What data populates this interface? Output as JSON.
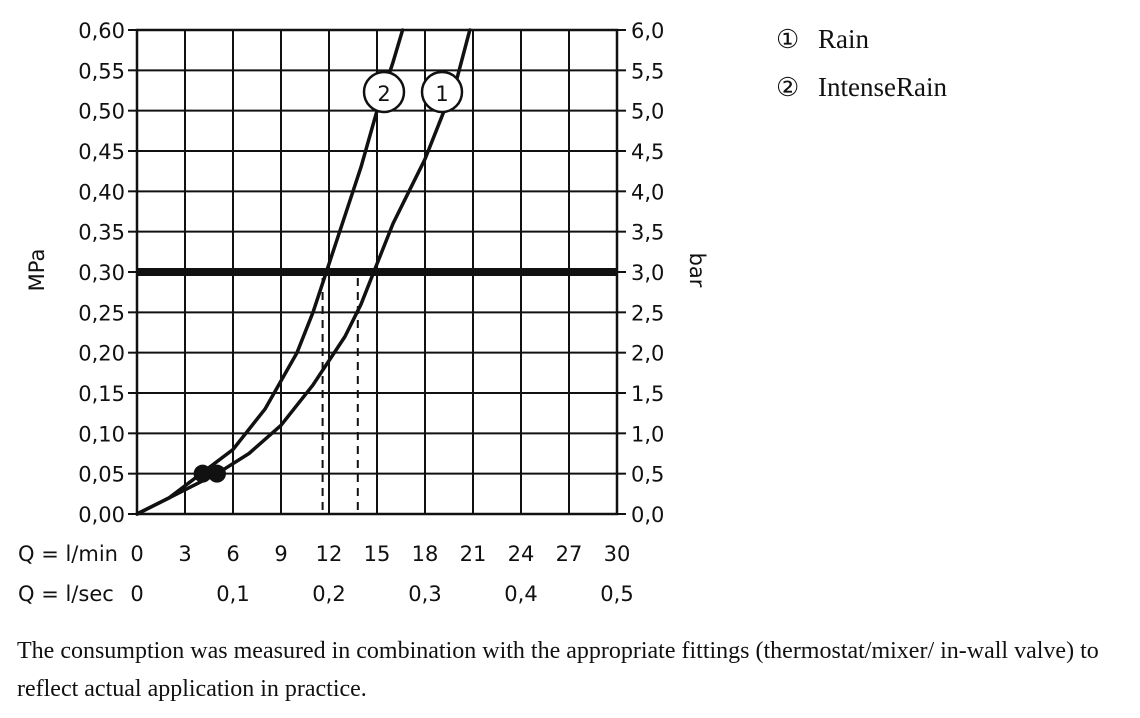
{
  "chart_data": {
    "type": "line",
    "y_left": {
      "label": "MPa",
      "range": [
        0,
        0.6
      ],
      "ticks": [
        "0,00",
        "0,05",
        "0,10",
        "0,15",
        "0,20",
        "0,25",
        "0,30",
        "0,35",
        "0,40",
        "0,45",
        "0,50",
        "0,55",
        "0,60"
      ]
    },
    "y_right": {
      "label": "bar",
      "ticks": [
        "0,0",
        "0,5",
        "1,0",
        "1,5",
        "2,0",
        "2,5",
        "3,0",
        "3,5",
        "4,0",
        "4,5",
        "5,0",
        "5,5",
        "6,0"
      ]
    },
    "x": {
      "range": [
        0,
        30
      ],
      "row1_label": "Q = l/min",
      "row1_ticks": [
        "0",
        "3",
        "6",
        "9",
        "12",
        "15",
        "18",
        "21",
        "24",
        "27",
        "30"
      ],
      "row1_values": [
        0,
        3,
        6,
        9,
        12,
        15,
        18,
        21,
        24,
        27,
        30
      ],
      "row2_label": "Q = l/sec",
      "row2_ticks": [
        "0",
        "0,1",
        "0,2",
        "0,3",
        "0,4",
        "0,5"
      ],
      "row2_values": [
        0,
        6,
        12,
        18,
        24,
        30
      ]
    },
    "grid": true,
    "series": [
      {
        "marker": "1",
        "points": [
          [
            0,
            0
          ],
          [
            2,
            0.02
          ],
          [
            4,
            0.04
          ],
          [
            5,
            0.05
          ],
          [
            7,
            0.075
          ],
          [
            9,
            0.11
          ],
          [
            11,
            0.16
          ],
          [
            13,
            0.22
          ],
          [
            14,
            0.26
          ],
          [
            15,
            0.31
          ],
          [
            16,
            0.36
          ],
          [
            17,
            0.4
          ],
          [
            18,
            0.44
          ],
          [
            19,
            0.49
          ],
          [
            20,
            0.54
          ],
          [
            20.8,
            0.6
          ]
        ]
      },
      {
        "marker": "2",
        "points": [
          [
            0,
            0
          ],
          [
            2,
            0.02
          ],
          [
            4,
            0.05
          ],
          [
            6,
            0.08
          ],
          [
            8,
            0.13
          ],
          [
            10,
            0.2
          ],
          [
            11,
            0.25
          ],
          [
            12,
            0.31
          ],
          [
            13,
            0.37
          ],
          [
            14,
            0.43
          ],
          [
            15,
            0.5
          ],
          [
            16,
            0.56
          ],
          [
            16.6,
            0.6
          ]
        ]
      }
    ],
    "reference_line": {
      "y": 0.3
    },
    "operating_points": [
      11.6,
      13.8
    ],
    "low_markers": [
      [
        4.1,
        0.05
      ],
      [
        5.0,
        0.05
      ]
    ],
    "legend": [
      {
        "symbol": "①",
        "name": "Rain"
      },
      {
        "symbol": "②",
        "name": "IntenseRain"
      }
    ],
    "legend_position": "top-right"
  },
  "note": "The consumption was measured in combination with the appropriate fittings (thermostat/mixer/ in-wall valve) to reflect actual application in practice."
}
